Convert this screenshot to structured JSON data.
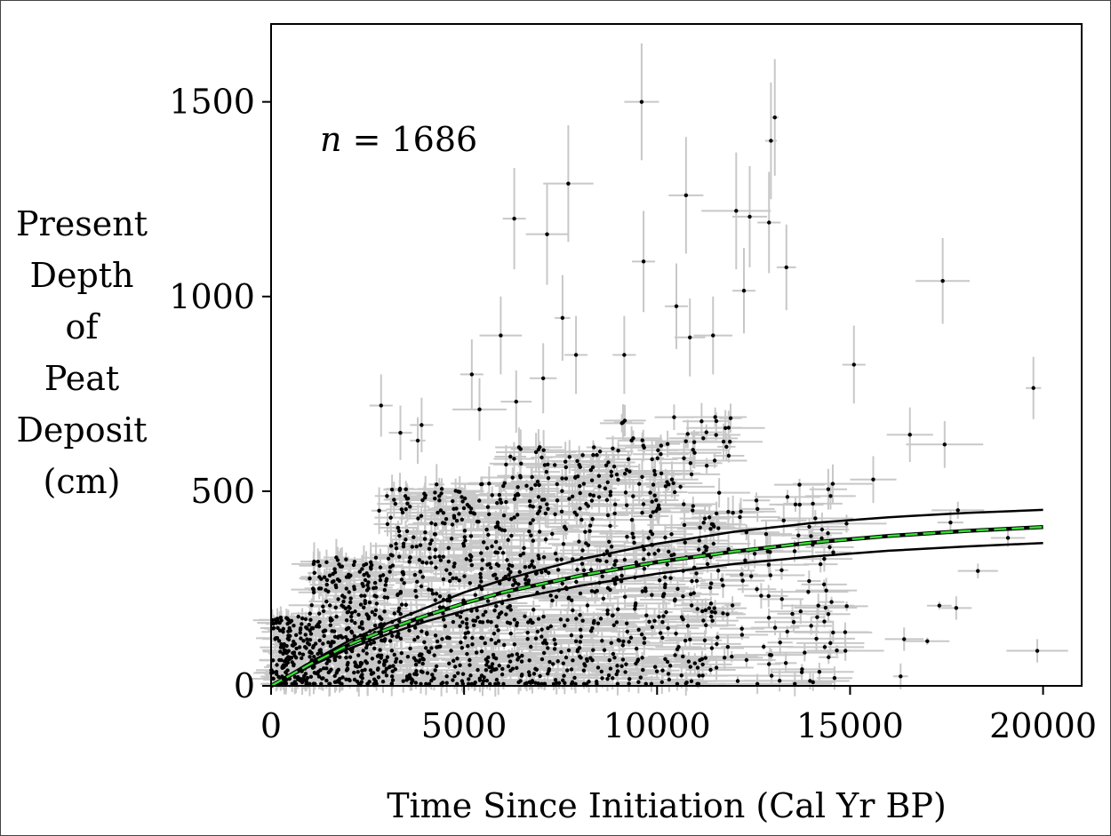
{
  "chart_data": {
    "type": "scatter",
    "title": "",
    "xlabel": "Time Since Initiation (Cal Yr BP)",
    "ylabel_lines": [
      "Present",
      "Depth",
      "of",
      "Peat",
      "Deposit",
      "(cm)"
    ],
    "annotation": {
      "n_label": "n = 1686",
      "n": 1686
    },
    "xlim": [
      0,
      21000
    ],
    "ylim": [
      0,
      1700
    ],
    "xticks": [
      0,
      5000,
      10000,
      15000,
      20000
    ],
    "yticks": [
      0,
      500,
      1000,
      1500
    ],
    "grid": false,
    "legend": "none",
    "colors": {
      "points": "#000000",
      "error_bars": "#c8c8c8",
      "fit_band": "#000000",
      "fit_mean": "#33dd33"
    },
    "fit_curves": {
      "x": [
        0,
        1000,
        2000,
        3000,
        4000,
        5000,
        6000,
        8000,
        10000,
        12000,
        14000,
        16000,
        18000,
        20000
      ],
      "upper": [
        0,
        60,
        115,
        160,
        200,
        240,
        272,
        325,
        365,
        396,
        418,
        433,
        444,
        452
      ],
      "mean": [
        0,
        55,
        105,
        145,
        180,
        212,
        240,
        283,
        318,
        345,
        368,
        385,
        398,
        408
      ],
      "lower": [
        0,
        50,
        95,
        132,
        165,
        193,
        218,
        257,
        288,
        313,
        332,
        347,
        358,
        367
      ]
    },
    "highlighted_points": [
      {
        "x": 9600,
        "y": 1500,
        "xerr": 450,
        "yerr": 150
      },
      {
        "x": 13050,
        "y": 1460,
        "xerr": 100,
        "yerr": 150
      },
      {
        "x": 12950,
        "y": 1400,
        "xerr": 150,
        "yerr": 150
      },
      {
        "x": 7700,
        "y": 1290,
        "xerr": 650,
        "yerr": 150
      },
      {
        "x": 10750,
        "y": 1260,
        "xerr": 450,
        "yerr": 150
      },
      {
        "x": 12050,
        "y": 1220,
        "xerr": 900,
        "yerr": 150
      },
      {
        "x": 6300,
        "y": 1200,
        "xerr": 300,
        "yerr": 130
      },
      {
        "x": 12400,
        "y": 1205,
        "xerr": 450,
        "yerr": 130
      },
      {
        "x": 12900,
        "y": 1190,
        "xerr": 300,
        "yerr": 130
      },
      {
        "x": 7150,
        "y": 1160,
        "xerr": 550,
        "yerr": 130
      },
      {
        "x": 9650,
        "y": 1090,
        "xerr": 300,
        "yerr": 130
      },
      {
        "x": 13350,
        "y": 1075,
        "xerr": 250,
        "yerr": 110
      },
      {
        "x": 17400,
        "y": 1040,
        "xerr": 700,
        "yerr": 110
      },
      {
        "x": 12250,
        "y": 1015,
        "xerr": 300,
        "yerr": 110
      },
      {
        "x": 10500,
        "y": 975,
        "xerr": 300,
        "yerr": 110
      },
      {
        "x": 7550,
        "y": 945,
        "xerr": 200,
        "yerr": 110
      },
      {
        "x": 5950,
        "y": 900,
        "xerr": 550,
        "yerr": 100
      },
      {
        "x": 10850,
        "y": 895,
        "xerr": 400,
        "yerr": 100
      },
      {
        "x": 11450,
        "y": 900,
        "xerr": 500,
        "yerr": 100
      },
      {
        "x": 7900,
        "y": 850,
        "xerr": 300,
        "yerr": 100
      },
      {
        "x": 9150,
        "y": 850,
        "xerr": 300,
        "yerr": 100
      },
      {
        "x": 15100,
        "y": 825,
        "xerr": 300,
        "yerr": 100
      },
      {
        "x": 5200,
        "y": 800,
        "xerr": 300,
        "yerr": 90
      },
      {
        "x": 7050,
        "y": 790,
        "xerr": 350,
        "yerr": 90
      },
      {
        "x": 19750,
        "y": 765,
        "xerr": 200,
        "yerr": 80
      },
      {
        "x": 6350,
        "y": 730,
        "xerr": 400,
        "yerr": 80
      },
      {
        "x": 2850,
        "y": 720,
        "xerr": 300,
        "yerr": 80
      },
      {
        "x": 5400,
        "y": 710,
        "xerr": 700,
        "yerr": 80
      },
      {
        "x": 3900,
        "y": 670,
        "xerr": 300,
        "yerr": 70
      },
      {
        "x": 3350,
        "y": 650,
        "xerr": 300,
        "yerr": 70
      },
      {
        "x": 16550,
        "y": 645,
        "xerr": 600,
        "yerr": 70
      },
      {
        "x": 3800,
        "y": 630,
        "xerr": 200,
        "yerr": 60
      },
      {
        "x": 17450,
        "y": 620,
        "xerr": 1000,
        "yerr": 60
      },
      {
        "x": 15600,
        "y": 530,
        "xerr": 600,
        "yerr": 60
      },
      {
        "x": 2800,
        "y": 450,
        "xerr": 200,
        "yerr": 60
      },
      {
        "x": 19850,
        "y": 90,
        "xerr": 800,
        "yerr": 30
      },
      {
        "x": 17750,
        "y": 200,
        "xerr": 400,
        "yerr": 30
      },
      {
        "x": 16400,
        "y": 120,
        "xerr": 500,
        "yerr": 30
      },
      {
        "x": 13750,
        "y": 35,
        "xerr": 800,
        "yerr": 20
      }
    ],
    "cloud_points_summary": {
      "description_bins": [
        {
          "x_range": [
            0,
            1000
          ],
          "y_range": [
            0,
            180
          ],
          "count": 160
        },
        {
          "x_range": [
            1000,
            3000
          ],
          "y_range": [
            0,
            330
          ],
          "count": 330
        },
        {
          "x_range": [
            3000,
            6000
          ],
          "y_range": [
            0,
            520
          ],
          "count": 420
        },
        {
          "x_range": [
            6000,
            9000
          ],
          "y_range": [
            0,
            620
          ],
          "count": 380
        },
        {
          "x_range": [
            9000,
            12000
          ],
          "y_range": [
            0,
            700
          ],
          "count": 260
        },
        {
          "x_range": [
            12000,
            15000
          ],
          "y_range": [
            0,
            520
          ],
          "count": 90
        },
        {
          "x_range": [
            15000,
            20000
          ],
          "y_range": [
            0,
            500
          ],
          "count": 7
        }
      ]
    }
  }
}
